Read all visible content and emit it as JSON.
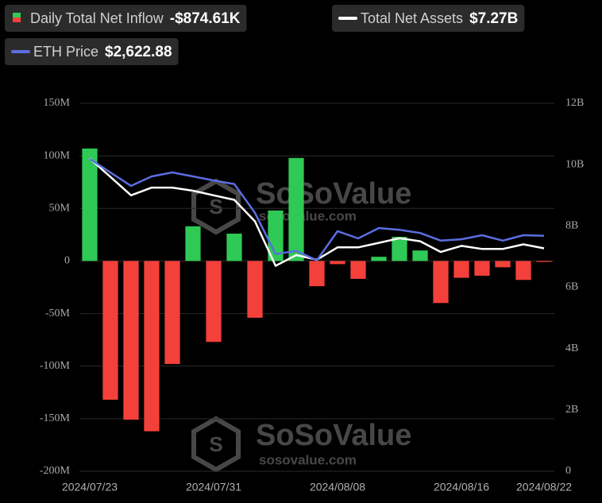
{
  "chart_data": {
    "type": "bar_line",
    "categories": [
      "2024/07/23",
      null,
      null,
      null,
      null,
      null,
      "2024/07/31",
      null,
      null,
      null,
      null,
      null,
      "2024/08/08",
      null,
      null,
      null,
      null,
      null,
      "2024/08/16",
      null,
      null,
      null,
      "2024/08/22"
    ],
    "series": [
      {
        "name": "Daily Total Net Inflow",
        "legend_value": "-$874.61K",
        "type": "bar",
        "color": "#2fc955",
        "negative_color": "#f4403a",
        "values": [
          107000000,
          -132000000,
          -151000000,
          -162000000,
          -98000000,
          33000000,
          -77000000,
          26000000,
          -54000000,
          48000000,
          98000000,
          -24000000,
          -3000000,
          -17000000,
          4000000,
          23000000,
          10000000,
          -40000000,
          -16000000,
          -14000000,
          -6000000,
          -18000000,
          -874610
        ]
      },
      {
        "name": "Total Net Assets",
        "legend_value": "$7.27B",
        "type": "line",
        "axis": "y2",
        "color": "#ffffff",
        "values": [
          10200000000,
          9600000000,
          9000000000,
          9250000000,
          9250000000,
          9150000000,
          9000000000,
          8850000000,
          8150000000,
          6700000000,
          7050000000,
          6900000000,
          7300000000,
          7300000000,
          7450000000,
          7600000000,
          7500000000,
          7150000000,
          7350000000,
          7250000000,
          7250000000,
          7400000000,
          7270000000
        ]
      },
      {
        "name": "ETH Price",
        "legend_value": "$2,622.88",
        "type": "line",
        "axis": "y3",
        "color": "#5b6ee1",
        "values": [
          3480,
          3330,
          3180,
          3285,
          3330,
          3285,
          3240,
          3200,
          2880,
          2420,
          2455,
          2350,
          2675,
          2595,
          2710,
          2690,
          2655,
          2570,
          2585,
          2630,
          2570,
          2630,
          2622.88
        ]
      }
    ],
    "ylim": [
      -200000000,
      150000000
    ],
    "yticks": [
      {
        "value": -200000000,
        "label": "-200M"
      },
      {
        "value": -150000000,
        "label": "-150M"
      },
      {
        "value": -100000000,
        "label": "-100M"
      },
      {
        "value": -50000000,
        "label": "-50M"
      },
      0,
      {
        "value": 50000000,
        "label": "50M"
      },
      {
        "value": 100000000,
        "label": "100M"
      },
      {
        "value": 150000000,
        "label": "150M"
      }
    ],
    "y2lim": [
      0,
      12000000000
    ],
    "y2ticks": [
      0,
      {
        "value": 2000000000,
        "label": "2B"
      },
      {
        "value": 4000000000,
        "label": "4B"
      },
      {
        "value": 6000000000,
        "label": "6B"
      },
      {
        "value": 8000000000,
        "label": "8B"
      },
      {
        "value": 10000000000,
        "label": "10B"
      },
      {
        "value": 12000000000,
        "label": "12B"
      }
    ],
    "y3lim": [
      0,
      4100
    ],
    "grid": true,
    "watermark": {
      "brand": "SoSoValue",
      "site": "sosovalue.com"
    }
  }
}
